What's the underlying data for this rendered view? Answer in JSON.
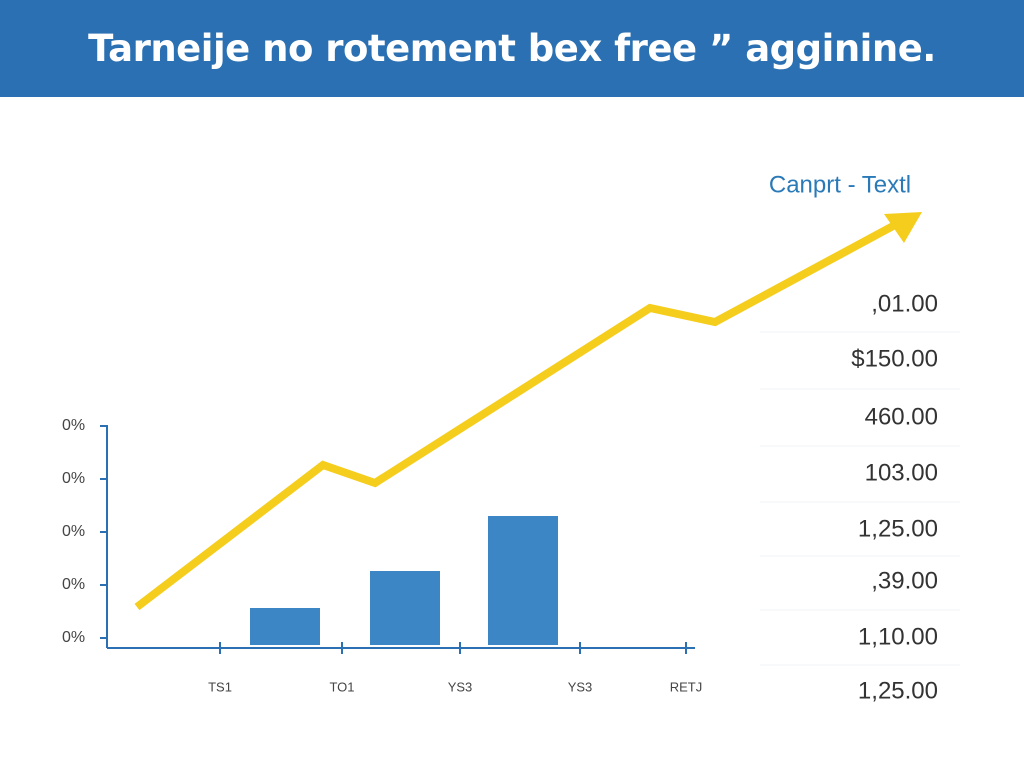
{
  "header": {
    "title": "Tarneije no rotement bex free ” agginine."
  },
  "chart": {
    "legend_label": "Canprt - Textl",
    "y_labels": [
      "0%",
      "0%",
      "0%",
      "0%",
      "0%"
    ],
    "x_labels": [
      "TS1",
      "TO1",
      "YS3",
      "YS3",
      "RETJ"
    ]
  },
  "value_list": [
    ",01.00",
    "$150.00",
    "460.00",
    "103.00",
    "1,25.00",
    ",39.00",
    "1,10.00",
    "1,25.00"
  ]
}
